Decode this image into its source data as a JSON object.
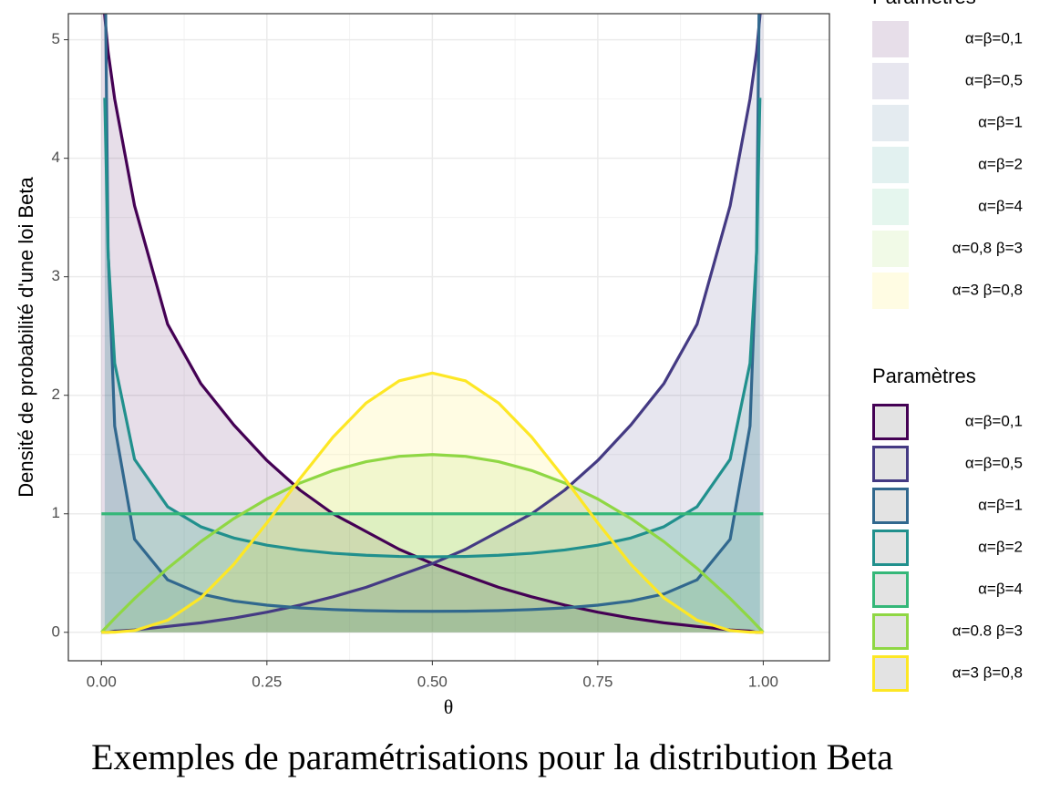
{
  "chart_data": {
    "type": "line",
    "title": "Exemples de paramétrisations pour la distribution Beta",
    "x_label": "θ",
    "y_label": "Densité de probabilité d'une loi Beta",
    "x": [
      0,
      0.005,
      0.01,
      0.02,
      0.05,
      0.1,
      0.15,
      0.2,
      0.25,
      0.3,
      0.35,
      0.4,
      0.45,
      0.5,
      0.55,
      0.6,
      0.65,
      0.7,
      0.75,
      0.8,
      0.85,
      0.9,
      0.95,
      0.98,
      0.99,
      0.995,
      1
    ],
    "series": [
      {
        "name": "α=β=0,1",
        "color": "#440154",
        "values": [
          5.5,
          5.2,
          4.9,
          4.5,
          3.6,
          2.6,
          2.1,
          1.75,
          1.45,
          1.2,
          1.0,
          0.85,
          0.7,
          0.58,
          0.48,
          0.38,
          0.3,
          0.23,
          0.17,
          0.12,
          0.08,
          0.05,
          0.02,
          0.01,
          0,
          0,
          0
        ]
      },
      {
        "name": "α=β=0,5",
        "color": "#443a83",
        "values": [
          0,
          0,
          0,
          0.01,
          0.02,
          0.05,
          0.08,
          0.12,
          0.17,
          0.23,
          0.3,
          0.38,
          0.48,
          0.58,
          0.7,
          0.85,
          1.0,
          1.2,
          1.45,
          1.75,
          2.1,
          2.6,
          3.6,
          4.5,
          4.9,
          5.2,
          5.5
        ]
      },
      {
        "name": "α=β=1",
        "color": "#31688e",
        "values": [
          null,
          5.97,
          3.23,
          1.74,
          0.786,
          0.443,
          0.324,
          0.264,
          0.229,
          0.206,
          0.192,
          0.183,
          0.178,
          0.177,
          0.178,
          0.183,
          0.192,
          0.206,
          0.229,
          0.264,
          0.324,
          0.443,
          0.786,
          1.74,
          3.23,
          5.97,
          null
        ]
      },
      {
        "name": "α=β=2",
        "color": "#21908d",
        "values": [
          null,
          4.51,
          3.2,
          2.27,
          1.46,
          1.06,
          0.891,
          0.796,
          0.735,
          0.695,
          0.667,
          0.65,
          0.64,
          0.637,
          0.64,
          0.65,
          0.667,
          0.695,
          0.735,
          0.796,
          0.891,
          1.06,
          1.46,
          2.27,
          3.2,
          4.51,
          null
        ]
      },
      {
        "name": "α=β=4",
        "color": "#35b779",
        "values": [
          1,
          1,
          1,
          1,
          1,
          1,
          1,
          1,
          1,
          1,
          1,
          1,
          1,
          1,
          1,
          1,
          1,
          1,
          1,
          1,
          1,
          1,
          1,
          1,
          1,
          1,
          1
        ]
      },
      {
        "name": "α=0.8 β=3",
        "color": "#8fd744",
        "values": [
          0,
          0.03,
          0.059,
          0.118,
          0.285,
          0.54,
          0.765,
          0.96,
          1.125,
          1.26,
          1.365,
          1.44,
          1.485,
          1.5,
          1.485,
          1.44,
          1.365,
          1.26,
          1.125,
          0.96,
          0.765,
          0.54,
          0.285,
          0.118,
          0.059,
          0.03,
          0
        ]
      },
      {
        "name": "α=3 β=0,8",
        "color": "#fde725",
        "values": [
          0,
          0,
          0.0001,
          0.001,
          0.015,
          0.102,
          0.29,
          0.573,
          0.923,
          1.297,
          1.648,
          1.935,
          2.122,
          2.1875,
          2.122,
          1.935,
          1.648,
          1.297,
          0.923,
          0.573,
          0.29,
          0.102,
          0.015,
          0.001,
          0.0001,
          0,
          0
        ]
      }
    ],
    "fill_legend": {
      "title": "Paramètres",
      "labels": [
        "α=β=0,1",
        "α=β=0,5",
        "α=β=1",
        "α=β=2",
        "α=β=4",
        "α=0,8 β=3",
        "α=3 β=0,8"
      ]
    },
    "legend_title": "Paramètres",
    "xlim": [
      -0.05,
      1.1
    ],
    "ylim": [
      -0.24,
      5.22
    ],
    "xticks": [
      {
        "value": 0,
        "label": "0.00"
      },
      0.25,
      {
        "value": 0.5,
        "label": "0.50"
      },
      0.75,
      {
        "value": 1,
        "label": "1.00"
      }
    ],
    "yticks": [
      0,
      1,
      2,
      3,
      4,
      5
    ],
    "grid": true,
    "legend": "right"
  }
}
